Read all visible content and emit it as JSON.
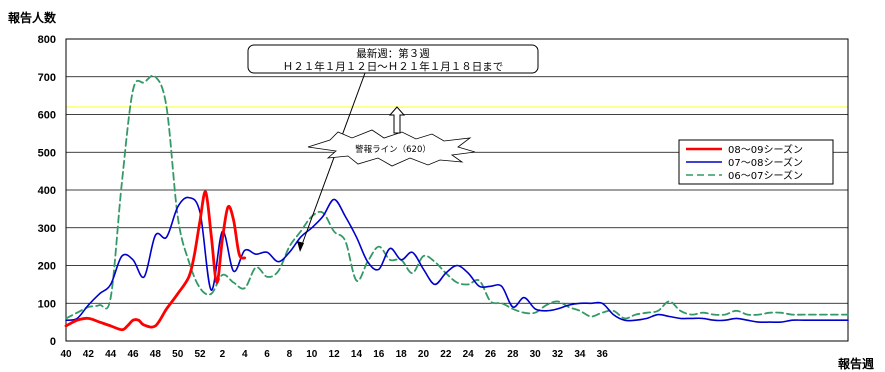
{
  "chart_data": {
    "type": "line",
    "ylabel": "報告人数",
    "xlabel": "報告週",
    "ylim": [
      0,
      800
    ],
    "yticks": [
      0,
      100,
      200,
      300,
      400,
      500,
      600,
      700,
      800
    ],
    "xtick_labels": [
      "40",
      "42",
      "44",
      "46",
      "48",
      "50",
      "52",
      "2",
      "4",
      "6",
      "8",
      "10",
      "12",
      "14",
      "16",
      "18",
      "20",
      "22",
      "24",
      "26",
      "28",
      "30",
      "32",
      "34",
      "36"
    ],
    "grid": "horizontal",
    "legend_position": "right",
    "warning_line": {
      "value": 620,
      "label": "警報ライン（620）",
      "color": "#ffff66"
    },
    "annotation": {
      "line1": "最新週：第３週",
      "line2": "Ｈ２１年１月１２日～Ｈ２１年１月１８日まで"
    },
    "series": [
      {
        "name": "08～09シーズン",
        "color": "#ff0000",
        "style": "solid-thick",
        "x": [
          40,
          41,
          42,
          43,
          44,
          45,
          45.5,
          46,
          46.5,
          47,
          48,
          49,
          50,
          51,
          51.5,
          52,
          52.5,
          53,
          53.5,
          54,
          54.5,
          55,
          55.5,
          56
        ],
        "y": [
          40,
          55,
          60,
          50,
          40,
          30,
          40,
          55,
          55,
          42,
          40,
          85,
          125,
          170,
          230,
          320,
          395,
          280,
          155,
          270,
          355,
          320,
          230,
          220
        ]
      },
      {
        "name": "07～08シーズン",
        "color": "#0000cc",
        "style": "solid",
        "x": [
          40,
          41,
          42,
          43,
          44,
          45,
          46,
          47,
          48,
          49,
          50,
          51,
          52,
          53,
          54,
          55,
          56,
          57,
          58,
          59,
          60,
          61,
          62,
          63,
          64,
          65,
          66,
          67,
          68,
          69,
          70,
          71,
          72,
          73,
          74,
          75,
          76,
          77,
          78,
          79,
          80,
          81,
          82,
          83,
          84,
          85,
          86,
          87,
          88,
          89,
          90,
          91,
          92,
          93,
          94,
          95,
          96,
          97,
          98,
          99,
          100,
          101,
          102,
          103,
          104,
          105,
          106,
          107,
          108,
          109,
          110
        ],
        "y": [
          55,
          60,
          95,
          125,
          150,
          225,
          215,
          170,
          280,
          275,
          355,
          380,
          340,
          135,
          290,
          185,
          240,
          230,
          235,
          210,
          235,
          275,
          300,
          330,
          375,
          330,
          275,
          210,
          190,
          245,
          215,
          235,
          190,
          150,
          180,
          200,
          180,
          145,
          145,
          145,
          90,
          115,
          85,
          80,
          85,
          95,
          100,
          100,
          100,
          70,
          55,
          55,
          60,
          70,
          65,
          60,
          60,
          60,
          55,
          55,
          60,
          55,
          50,
          50,
          50,
          55,
          55,
          55,
          55,
          55,
          55
        ]
      },
      {
        "name": "06～07シーズン",
        "color": "#339966",
        "style": "dashed",
        "x": [
          40,
          41,
          42,
          43,
          44,
          45,
          46,
          47,
          48,
          49,
          50,
          51,
          52,
          53,
          54,
          55,
          56,
          57,
          58,
          59,
          60,
          61,
          62,
          63,
          64,
          65,
          66,
          67,
          68,
          69,
          70,
          71,
          72,
          73,
          74,
          75,
          76,
          77,
          78,
          79,
          80,
          81,
          82,
          83,
          84,
          85,
          86,
          87,
          88,
          89,
          90,
          91,
          92,
          93,
          94,
          95,
          96,
          97,
          98,
          99,
          100,
          101,
          102,
          103,
          104,
          105,
          106,
          107,
          108,
          109,
          110
        ],
        "y": [
          60,
          75,
          90,
          95,
          115,
          420,
          665,
          685,
          700,
          620,
          330,
          210,
          140,
          125,
          175,
          155,
          140,
          195,
          170,
          185,
          250,
          290,
          330,
          340,
          290,
          265,
          160,
          210,
          250,
          215,
          215,
          180,
          225,
          210,
          180,
          155,
          150,
          160,
          105,
          100,
          85,
          75,
          75,
          95,
          105,
          90,
          80,
          65,
          75,
          80,
          60,
          70,
          75,
          80,
          105,
          80,
          70,
          75,
          70,
          70,
          80,
          70,
          70,
          75,
          75,
          70,
          70,
          70,
          70,
          70,
          70
        ]
      }
    ]
  }
}
